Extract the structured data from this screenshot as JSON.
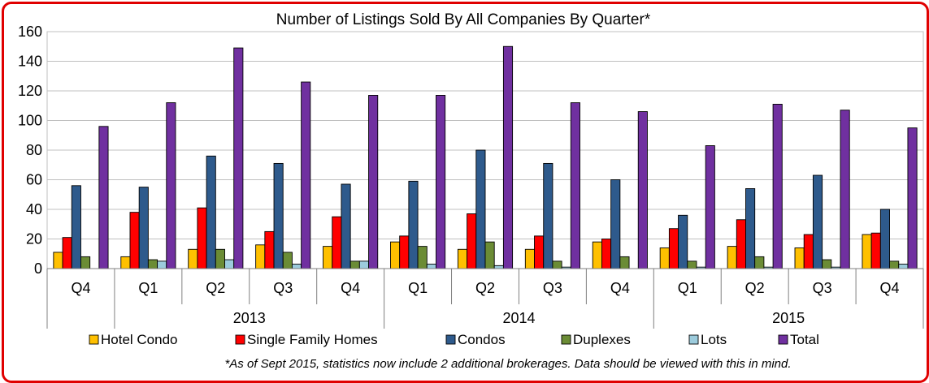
{
  "chart_data": {
    "type": "bar",
    "title": "Number of Listings Sold By All Companies By Quarter*",
    "footnote": "*As of Sept 2015, statistics now include 2 additional brokerages. Data should be viewed with this in mind.",
    "categories": [
      "Q4",
      "Q1",
      "Q2",
      "Q3",
      "Q4",
      "Q1",
      "Q2",
      "Q3",
      "Q4",
      "Q1",
      "Q2",
      "Q3",
      "Q4"
    ],
    "year_groups": [
      {
        "label": "2013",
        "start": 1,
        "end": 4
      },
      {
        "label": "2014",
        "start": 5,
        "end": 8
      },
      {
        "label": "2015",
        "start": 9,
        "end": 12
      }
    ],
    "ylim": [
      0,
      160
    ],
    "yticks": [
      0,
      20,
      40,
      60,
      80,
      100,
      120,
      140,
      160
    ],
    "grid": true,
    "legend_position": "bottom",
    "series": [
      {
        "name": "Hotel Condo",
        "color": "#ffc000",
        "values": [
          11,
          8,
          13,
          16,
          15,
          18,
          13,
          13,
          18,
          14,
          15,
          14,
          23
        ]
      },
      {
        "name": "Single Family Homes",
        "color": "#ff0000",
        "values": [
          21,
          38,
          41,
          25,
          35,
          22,
          37,
          22,
          20,
          27,
          33,
          23,
          24
        ]
      },
      {
        "name": "Condos",
        "color": "#2e5a8c",
        "values": [
          56,
          55,
          76,
          71,
          57,
          59,
          80,
          71,
          60,
          36,
          54,
          63,
          40
        ]
      },
      {
        "name": "Duplexes",
        "color": "#6b8c35",
        "values": [
          8,
          6,
          13,
          11,
          5,
          15,
          18,
          5,
          8,
          5,
          8,
          6,
          5
        ]
      },
      {
        "name": "Lots",
        "color": "#9ccbdc",
        "values": [
          0,
          5,
          6,
          3,
          5,
          3,
          2,
          1,
          0,
          1,
          1,
          1,
          3
        ]
      },
      {
        "name": "Total",
        "color": "#7030a0",
        "values": [
          96,
          112,
          149,
          126,
          117,
          117,
          150,
          112,
          106,
          83,
          111,
          107,
          95
        ]
      }
    ]
  }
}
